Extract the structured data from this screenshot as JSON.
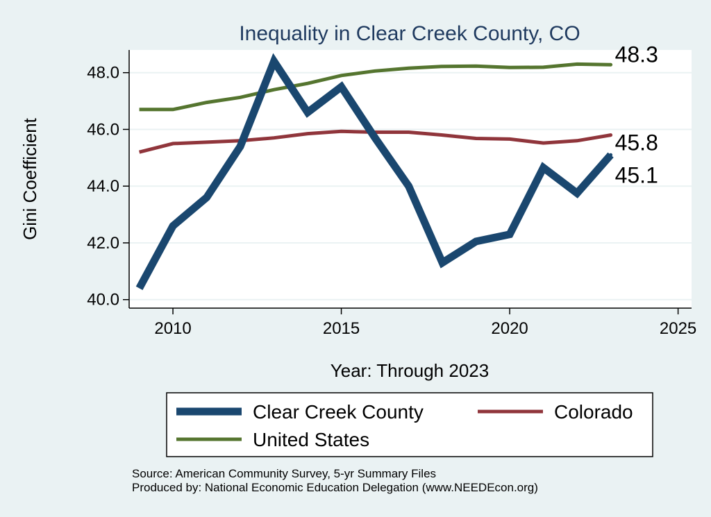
{
  "chart_data": {
    "type": "line",
    "title": "Inequality in Clear Creek County, CO",
    "xlabel": "Year: Through 2023",
    "ylabel": "Gini Coefficient",
    "xlim": [
      2008.7,
      2025.4
    ],
    "ylim": [
      39.7,
      48.8
    ],
    "xticks": [
      2010,
      2015,
      2020,
      2025
    ],
    "yticks": [
      "40.0",
      "42.0",
      "44.0",
      "46.0",
      "48.0"
    ],
    "x": [
      2009,
      2010,
      2011,
      2012,
      2013,
      2014,
      2015,
      2016,
      2017,
      2018,
      2019,
      2020,
      2021,
      2022,
      2023
    ],
    "series": [
      {
        "name": "Clear Creek County",
        "color": "#1a476f",
        "values": [
          40.4,
          42.6,
          43.6,
          45.4,
          48.4,
          46.6,
          47.5,
          45.7,
          44.0,
          41.3,
          42.05,
          42.3,
          44.65,
          43.75,
          45.1
        ],
        "end_label": "45.1"
      },
      {
        "name": "Colorado",
        "color": "#90353b",
        "values": [
          45.2,
          45.5,
          45.55,
          45.6,
          45.7,
          45.85,
          45.93,
          45.9,
          45.9,
          45.8,
          45.68,
          45.66,
          45.52,
          45.6,
          45.8
        ],
        "end_label": "45.8"
      },
      {
        "name": "United States",
        "color": "#55752f",
        "values": [
          46.7,
          46.7,
          46.95,
          47.13,
          47.4,
          47.62,
          47.9,
          48.06,
          48.16,
          48.22,
          48.23,
          48.18,
          48.19,
          48.3,
          48.28
        ],
        "end_label": "48.3"
      }
    ],
    "legend": {
      "position": "bottom",
      "entries": [
        "Clear Creek County",
        "Colorado",
        "United States"
      ]
    }
  },
  "source_lines": [
    "Source: American Community Survey, 5-yr Summary Files",
    "Produced by: National Economic Education Delegation (www.NEEDEcon.org)"
  ]
}
